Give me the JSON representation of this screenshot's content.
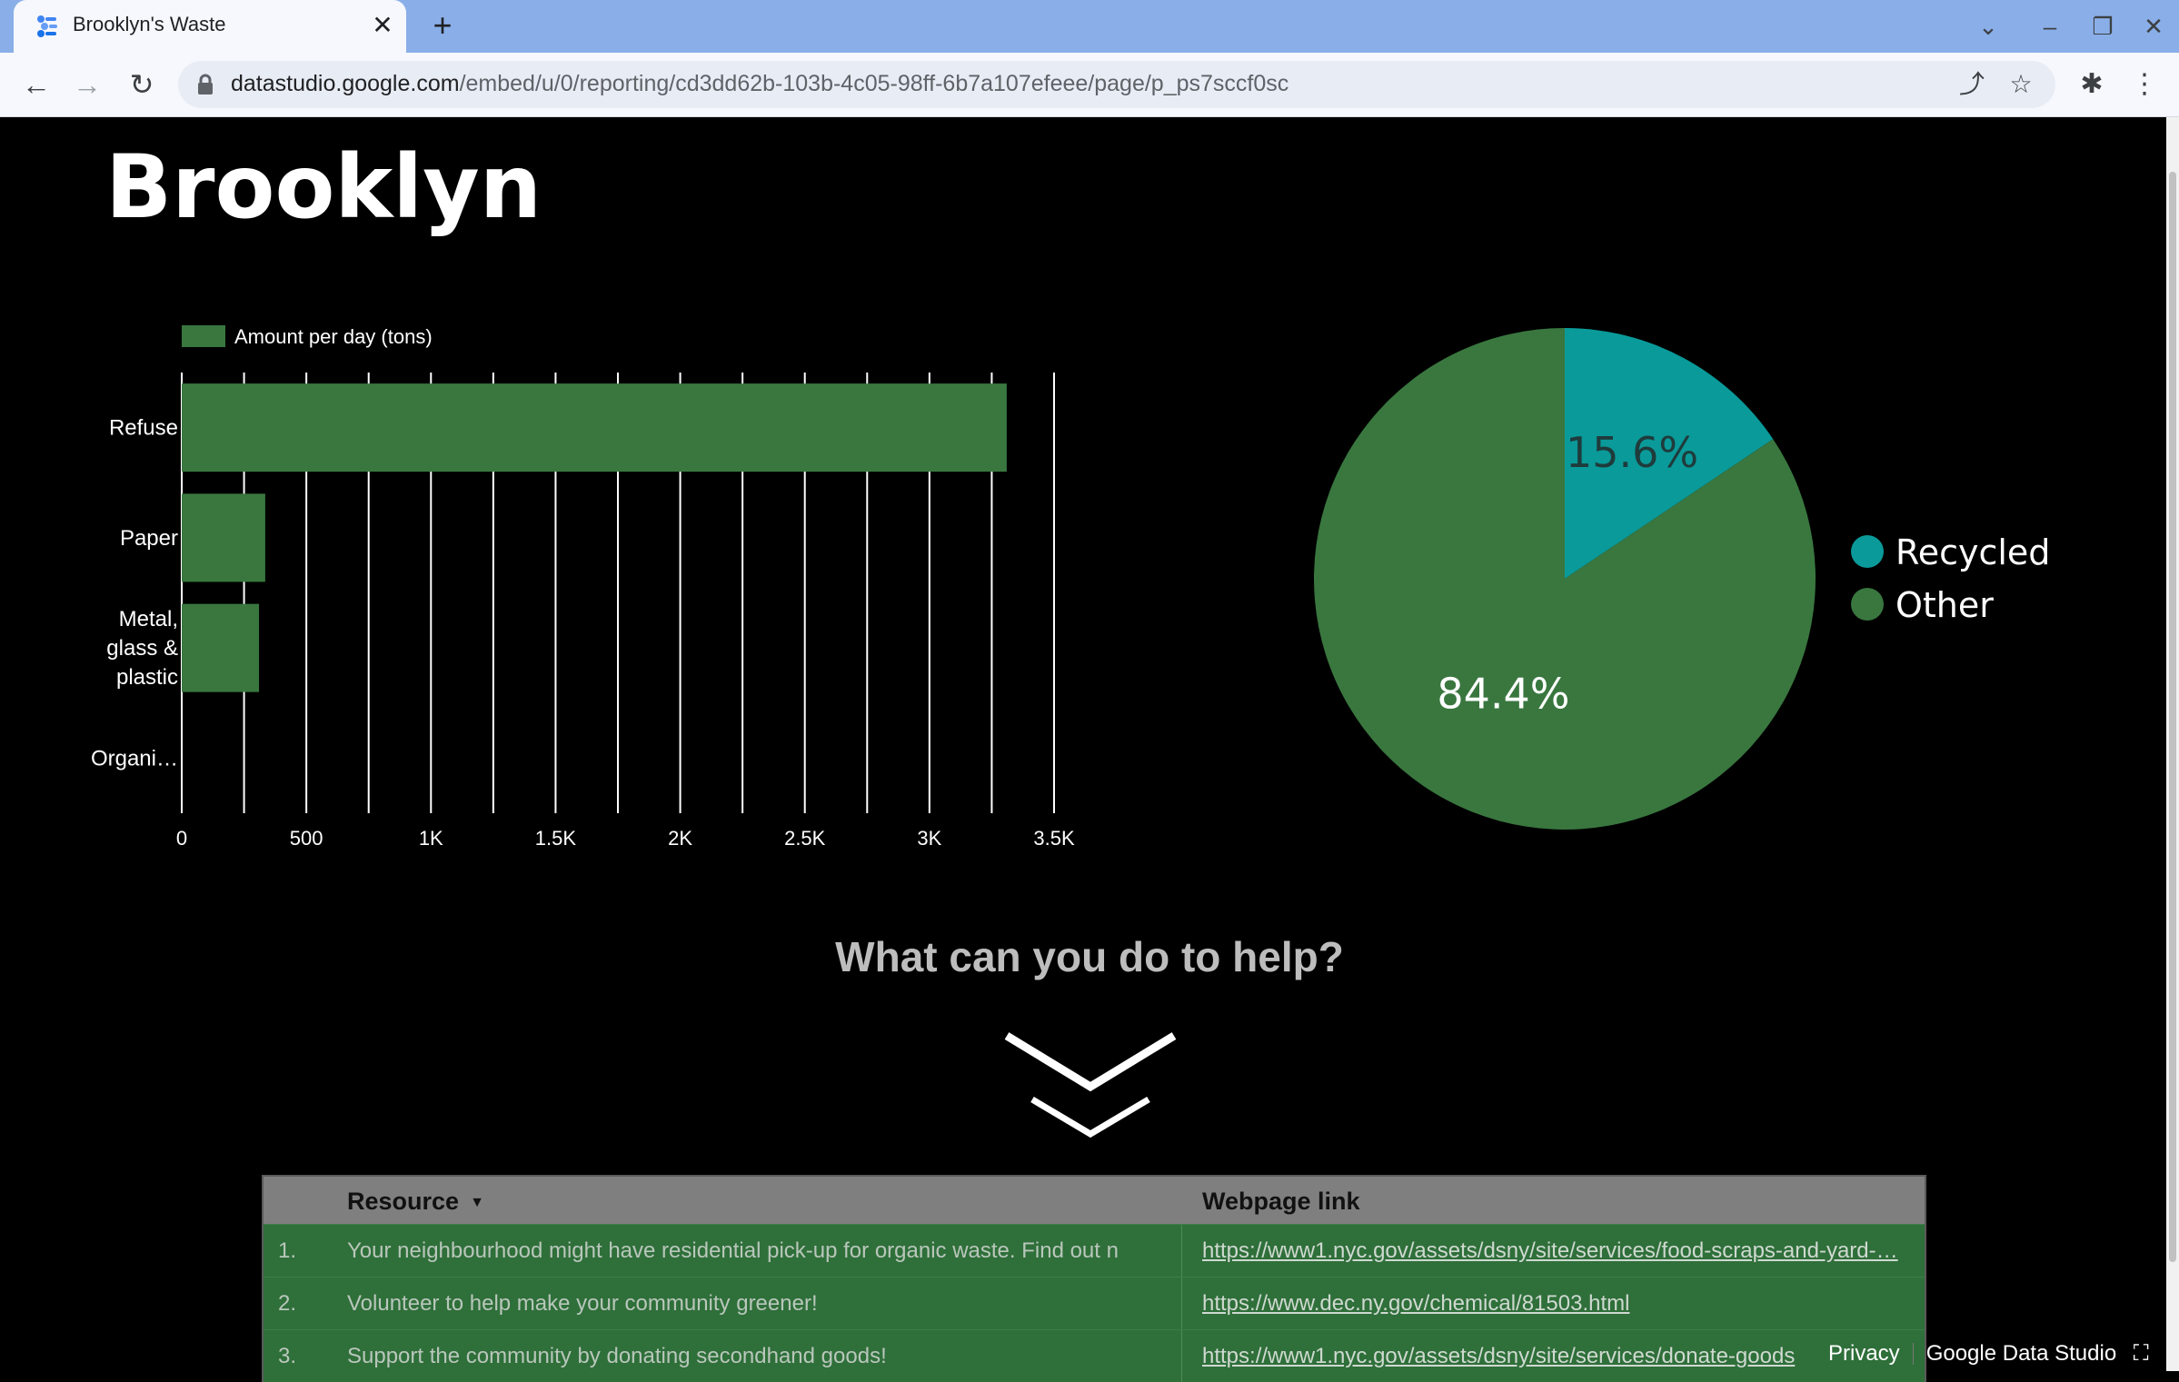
{
  "browser": {
    "tab_title": "Brooklyn's Waste",
    "tab_close": "✕",
    "new_tab": "+",
    "url_host": "datastudio.google.com",
    "url_path": "/embed/u/0/reporting/cd3dd62b-103b-4c05-98ff-6b7a107efeee/page/p_ps7sccf0sc"
  },
  "report": {
    "title": "Brooklyn",
    "help_heading": "What can you do to help?"
  },
  "chart_data": [
    {
      "type": "bar",
      "orientation": "horizontal",
      "legend": [
        "Amount per day (tons)"
      ],
      "categories": [
        "Refuse",
        "Paper",
        "Metal, glass & plastic",
        "Organi…"
      ],
      "series": [
        {
          "name": "Amount per day (tons)",
          "values": [
            3310,
            335,
            310,
            0
          ],
          "color": "#39773f"
        }
      ],
      "xlim": [
        0,
        3500
      ],
      "xticks": [
        "0",
        "500",
        "1K",
        "1.5K",
        "2K",
        "2.5K",
        "3K",
        "3.5K"
      ],
      "grid": true,
      "legend_position": "top-left"
    },
    {
      "type": "pie",
      "slices": [
        {
          "label": "Recycled",
          "value": 15.6,
          "display": "15.6%",
          "color": "#0a9a9a"
        },
        {
          "label": "Other",
          "value": 84.4,
          "display": "84.4%",
          "color": "#39773f"
        }
      ],
      "legend_position": "right"
    }
  ],
  "table": {
    "headers": {
      "resource": "Resource",
      "link": "Webpage link"
    },
    "rows": [
      {
        "num": "1.",
        "resource": "Your neighbourhood might have residential pick-up for organic waste. Find out now!",
        "link": "https://www1.nyc.gov/assets/dsny/site/services/food-scraps-and-yard-…"
      },
      {
        "num": "2.",
        "resource": "Volunteer to help make your community greener!",
        "link": "https://www.dec.ny.gov/chemical/81503.html"
      },
      {
        "num": "3.",
        "resource": "Support the community by donating secondhand goods!",
        "link": "https://www1.nyc.gov/assets/dsny/site/services/donate-goods"
      }
    ]
  },
  "footer": {
    "privacy": "Privacy",
    "brand": "Google Data Studio"
  },
  "icons": {
    "back": "←",
    "forward": "→",
    "reload": "↻",
    "share": "⤴",
    "star": "☆",
    "extensions": "✱",
    "menu": "⋮",
    "chevron_down": "⌄",
    "minimize": "–",
    "restore": "❐",
    "close": "✕",
    "fullscreen": "⛶"
  }
}
